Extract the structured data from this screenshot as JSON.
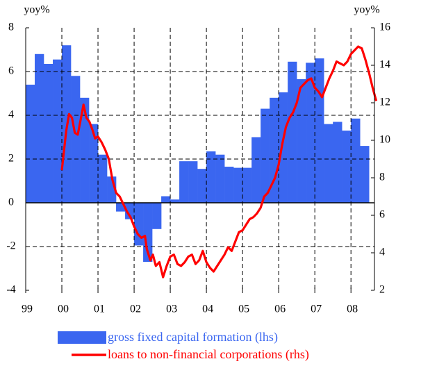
{
  "chart_data": {
    "type": "combo",
    "y_label": "yoy%",
    "y2_label": "yoy%",
    "xlim": [
      1999,
      2008.65
    ],
    "xticks": [
      {
        "value": 1999,
        "label": "99"
      },
      {
        "value": 2000,
        "label": "00"
      },
      {
        "value": 2001,
        "label": "01"
      },
      {
        "value": 2002,
        "label": "02"
      },
      {
        "value": 2003,
        "label": "03"
      },
      {
        "value": 2004,
        "label": "04"
      },
      {
        "value": 2005,
        "label": "05"
      },
      {
        "value": 2006,
        "label": "06"
      },
      {
        "value": 2007,
        "label": "07"
      },
      {
        "value": 2008,
        "label": "08"
      }
    ],
    "ylim": [
      -4,
      8
    ],
    "yticks": [
      -4,
      -2,
      0,
      2,
      4,
      6,
      8
    ],
    "y2lim": [
      2,
      16
    ],
    "y2ticks": [
      2,
      4,
      6,
      8,
      10,
      12,
      14,
      16
    ],
    "grid": true,
    "series": [
      {
        "name": "gross fixed capital formation (lhs)",
        "type": "bar",
        "color": "#3a66f0",
        "x": [
          1999,
          1999.25,
          1999.5,
          1999.75,
          2000,
          2000.25,
          2000.5,
          2000.75,
          2001,
          2001.25,
          2001.5,
          2001.75,
          2002,
          2002.25,
          2002.5,
          2002.75,
          2003,
          2003.25,
          2003.5,
          2003.75,
          2004,
          2004.25,
          2004.5,
          2004.75,
          2005,
          2005.25,
          2005.5,
          2005.75,
          2006,
          2006.25,
          2006.5,
          2006.75,
          2007,
          2007.25,
          2007.5,
          2007.75,
          2008,
          2008.25
        ],
        "values": [
          5.4,
          6.8,
          6.35,
          6.55,
          7.2,
          5.8,
          4.8,
          3.6,
          2.2,
          1.2,
          -0.4,
          -0.75,
          -1.95,
          -2.7,
          -1.2,
          0.3,
          0.15,
          1.9,
          1.9,
          1.55,
          2.35,
          2.2,
          1.65,
          1.6,
          1.6,
          3.0,
          4.3,
          4.8,
          5.05,
          6.45,
          5.65,
          6.4,
          6.6,
          3.6,
          3.7,
          3.3,
          3.85,
          2.6
        ]
      },
      {
        "name": "loans to non-financial corporations (rhs)",
        "type": "line",
        "axis": "y2",
        "color": "#ff0000",
        "x": [
          2000.0,
          2000.12,
          2000.2,
          2000.28,
          2000.36,
          2000.44,
          2000.52,
          2000.6,
          2000.68,
          2000.76,
          2000.84,
          2000.92,
          2001.0,
          2001.1,
          2001.2,
          2001.3,
          2001.4,
          2001.5,
          2001.6,
          2001.7,
          2001.8,
          2001.9,
          2002.0,
          2002.1,
          2002.2,
          2002.3,
          2002.35,
          2002.45,
          2002.52,
          2002.6,
          2002.7,
          2002.8,
          2002.9,
          2003.0,
          2003.1,
          2003.2,
          2003.3,
          2003.4,
          2003.5,
          2003.6,
          2003.7,
          2003.8,
          2003.9,
          2004.0,
          2004.1,
          2004.2,
          2004.3,
          2004.4,
          2004.5,
          2004.6,
          2004.7,
          2004.8,
          2004.9,
          2005.0,
          2005.1,
          2005.2,
          2005.3,
          2005.4,
          2005.5,
          2005.6,
          2005.7,
          2005.8,
          2005.9,
          2006.0,
          2006.1,
          2006.2,
          2006.3,
          2006.4,
          2006.5,
          2006.6,
          2006.7,
          2006.8,
          2006.9,
          2007.0,
          2007.1,
          2007.2,
          2007.3,
          2007.4,
          2007.5,
          2007.6,
          2007.7,
          2007.8,
          2007.9,
          2008.0,
          2008.1,
          2008.2,
          2008.3,
          2008.4,
          2008.5,
          2008.6,
          2008.7
        ],
        "values": [
          8.4,
          10.5,
          11.4,
          11.2,
          10.4,
          10.3,
          11.1,
          11.9,
          11.2,
          11.0,
          10.6,
          10.1,
          10.2,
          9.9,
          9.5,
          9.0,
          7.9,
          7.2,
          7.0,
          6.6,
          6.2,
          5.9,
          5.4,
          5.0,
          4.8,
          4.9,
          4.2,
          3.6,
          3.9,
          3.3,
          3.5,
          2.7,
          3.3,
          3.8,
          3.9,
          3.4,
          3.3,
          3.5,
          3.8,
          3.9,
          3.4,
          3.6,
          4.1,
          3.5,
          3.2,
          3.0,
          3.3,
          3.6,
          3.9,
          4.3,
          4.1,
          4.6,
          5.1,
          5.2,
          5.5,
          5.8,
          5.9,
          6.1,
          6.4,
          7.0,
          7.2,
          7.6,
          8.0,
          8.7,
          9.8,
          10.7,
          11.2,
          11.5,
          12.0,
          12.8,
          13.0,
          13.2,
          13.3,
          12.8,
          12.6,
          12.3,
          12.8,
          13.3,
          13.7,
          14.2,
          14.1,
          14.0,
          14.2,
          14.6,
          14.8,
          15.0,
          14.9,
          14.3,
          13.6,
          12.8,
          12.1
        ]
      }
    ]
  }
}
